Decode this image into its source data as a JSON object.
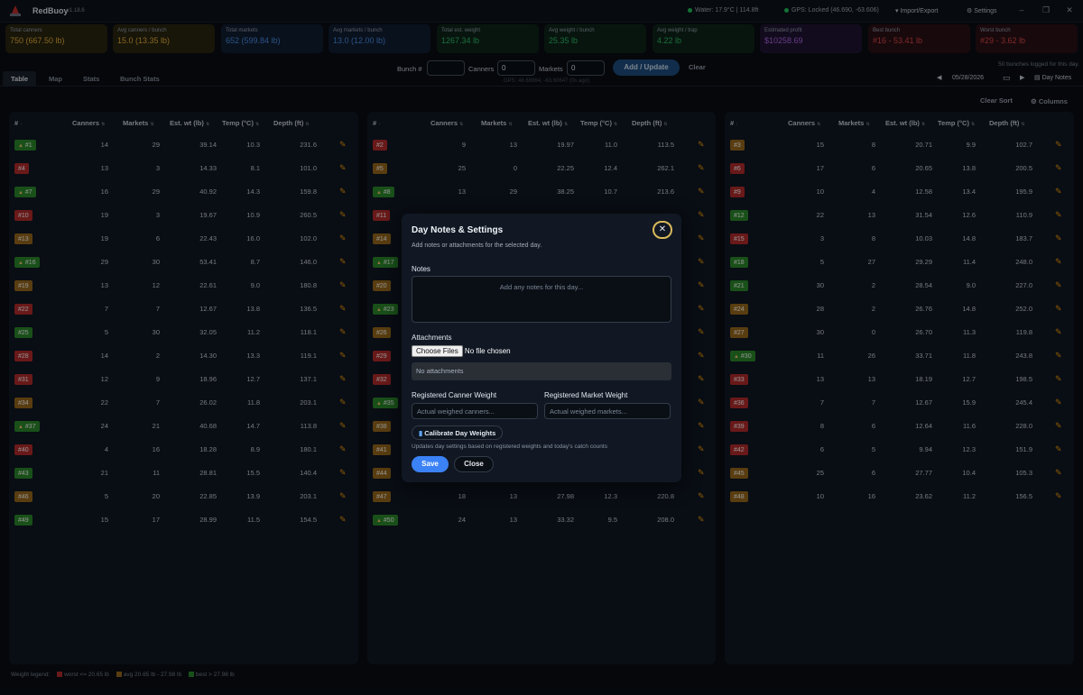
{
  "app": {
    "name": "RedBuoy",
    "version": "v1.18.6"
  },
  "topbar": {
    "water": "Water: 17.9°C | 114.8ft",
    "gps": "GPS: Locked (46.690, -63.606)",
    "import_export": "Import/Export",
    "settings": "Settings"
  },
  "stats": [
    {
      "label": "Total canners",
      "value": "750 (667.50 lb)",
      "color": "#e8b33a",
      "bg": "#2a2510"
    },
    {
      "label": "Avg canners / bunch",
      "value": "15.0 (13.35 lb)",
      "color": "#e8b33a",
      "bg": "#2a2510"
    },
    {
      "label": "Total markets",
      "value": "652 (599.84 lb)",
      "color": "#4b8fe6",
      "bg": "#111e33"
    },
    {
      "label": "Avg markets / bunch",
      "value": "13.0 (12.00 lb)",
      "color": "#4b8fe6",
      "bg": "#111e33"
    },
    {
      "label": "Total est. weight",
      "value": "1267.34 lb",
      "color": "#2fbf6a",
      "bg": "#0e2519"
    },
    {
      "label": "Avg weight / bunch",
      "value": "25.35 lb",
      "color": "#2fbf6a",
      "bg": "#0e2519"
    },
    {
      "label": "Avg weight / trap",
      "value": "4.22 lb",
      "color": "#2fbf6a",
      "bg": "#0e2519"
    },
    {
      "label": "Estimated profit",
      "value": "$10258.69",
      "color": "#b069e8",
      "bg": "#1f1433"
    },
    {
      "label": "Best bunch",
      "value": "#16 - 53.41 lb",
      "color": "#e04848",
      "bg": "#2a1015"
    },
    {
      "label": "Worst bunch",
      "value": "#29 - 3.62 lb",
      "color": "#e04848",
      "bg": "#2a1015"
    }
  ],
  "tabs": [
    "Table",
    "Map",
    "Stats",
    "Bunch Stats"
  ],
  "entry": {
    "bunch_label": "Bunch #",
    "bunch_value": "",
    "canners_label": "Canners",
    "canners_value": "0",
    "markets_label": "Markets",
    "markets_value": "0",
    "add_label": "Add / Update",
    "clear_label": "Clear",
    "gps_note": "GPS: 46.68964, -63.60647 (0s ago)"
  },
  "bunch_count": "50 bunches logged for this day.",
  "date": "05/28/2026",
  "day_notes_label": "Day Notes",
  "clear_sort": "Clear Sort",
  "columns_label": "Columns",
  "columns": [
    "#",
    "Canners",
    "Markets",
    "Est. wt (lb)",
    "Temp (°C)",
    "Depth (ft)"
  ],
  "panels": [
    [
      [
        "#1",
        "green",
        true,
        "14",
        "29",
        "39.14",
        "10.3",
        "231.6"
      ],
      [
        "#4",
        "red",
        false,
        "13",
        "3",
        "14.33",
        "8.1",
        "101.0"
      ],
      [
        "#7",
        "green",
        true,
        "16",
        "29",
        "40.92",
        "14.3",
        "159.8"
      ],
      [
        "#10",
        "red",
        false,
        "19",
        "3",
        "19.67",
        "10.9",
        "260.5"
      ],
      [
        "#13",
        "amber",
        false,
        "19",
        "6",
        "22.43",
        "16.0",
        "102.0"
      ],
      [
        "#16",
        "green",
        true,
        "29",
        "30",
        "53.41",
        "8.7",
        "146.0"
      ],
      [
        "#19",
        "amber",
        false,
        "13",
        "12",
        "22.61",
        "9.0",
        "180.8"
      ],
      [
        "#22",
        "red",
        false,
        "7",
        "7",
        "12.67",
        "13.8",
        "136.5"
      ],
      [
        "#25",
        "green",
        false,
        "5",
        "30",
        "32.05",
        "11.2",
        "118.1"
      ],
      [
        "#28",
        "red",
        false,
        "14",
        "2",
        "14.30",
        "13.3",
        "119.1"
      ],
      [
        "#31",
        "red",
        false,
        "12",
        "9",
        "18.96",
        "12.7",
        "137.1"
      ],
      [
        "#34",
        "amber",
        false,
        "22",
        "7",
        "26.02",
        "11.8",
        "203.1"
      ],
      [
        "#37",
        "green",
        true,
        "24",
        "21",
        "40.68",
        "14.7",
        "113.8"
      ],
      [
        "#40",
        "red",
        false,
        "4",
        "16",
        "18.28",
        "8.9",
        "180.1"
      ],
      [
        "#43",
        "green",
        false,
        "21",
        "11",
        "28.81",
        "15.5",
        "140.4"
      ],
      [
        "#46",
        "amber",
        false,
        "5",
        "20",
        "22.85",
        "13.9",
        "203.1"
      ],
      [
        "#49",
        "green",
        false,
        "15",
        "17",
        "28.99",
        "11.5",
        "154.5"
      ]
    ],
    [
      [
        "#2",
        "red",
        false,
        "9",
        "13",
        "19.97",
        "11.0",
        "113.5"
      ],
      [
        "#5",
        "amber",
        false,
        "25",
        "0",
        "22.25",
        "12.4",
        "262.1"
      ],
      [
        "#8",
        "green",
        true,
        "13",
        "29",
        "38.25",
        "10.7",
        "213.6"
      ],
      [
        "#11",
        "red",
        false,
        "",
        "",
        "",
        "",
        ""
      ],
      [
        "#14",
        "amber",
        false,
        "",
        "",
        "",
        "",
        ""
      ],
      [
        "#17",
        "green",
        true,
        "",
        "",
        "",
        "",
        ""
      ],
      [
        "#20",
        "amber",
        false,
        "",
        "",
        "",
        "",
        ""
      ],
      [
        "#23",
        "green",
        true,
        "",
        "",
        "",
        "",
        ""
      ],
      [
        "#26",
        "amber",
        false,
        "",
        "",
        "",
        "",
        ""
      ],
      [
        "#29",
        "red",
        false,
        "",
        "",
        "",
        "",
        ""
      ],
      [
        "#32",
        "red",
        false,
        "",
        "",
        "",
        "",
        ""
      ],
      [
        "#35",
        "green",
        true,
        "",
        "",
        "",
        "",
        ""
      ],
      [
        "#38",
        "amber",
        false,
        "",
        "",
        "",
        "",
        ""
      ],
      [
        "#41",
        "amber",
        false,
        "",
        "",
        "",
        "",
        ""
      ],
      [
        "#44",
        "amber",
        false,
        "",
        "",
        "",
        "",
        ""
      ],
      [
        "#47",
        "amber",
        false,
        "18",
        "13",
        "27.98",
        "12.3",
        "220.8"
      ],
      [
        "#50",
        "green",
        true,
        "24",
        "13",
        "33.32",
        "9.5",
        "208.0"
      ]
    ],
    [
      [
        "#3",
        "amber",
        false,
        "15",
        "8",
        "20.71",
        "9.9",
        "102.7"
      ],
      [
        "#6",
        "red",
        false,
        "17",
        "6",
        "20.65",
        "13.8",
        "200.5"
      ],
      [
        "#9",
        "red",
        false,
        "10",
        "4",
        "12.58",
        "13.4",
        "195.9"
      ],
      [
        "#12",
        "green",
        false,
        "22",
        "13",
        "31.54",
        "12.6",
        "110.9"
      ],
      [
        "#15",
        "red",
        false,
        "3",
        "8",
        "10.03",
        "14.8",
        "183.7"
      ],
      [
        "#18",
        "green",
        false,
        "5",
        "27",
        "29.29",
        "11.4",
        "248.0"
      ],
      [
        "#21",
        "green",
        false,
        "30",
        "2",
        "28.54",
        "9.0",
        "227.0"
      ],
      [
        "#24",
        "amber",
        false,
        "28",
        "2",
        "26.76",
        "14.8",
        "252.0"
      ],
      [
        "#27",
        "amber",
        false,
        "30",
        "0",
        "26.70",
        "11.3",
        "119.8"
      ],
      [
        "#30",
        "green",
        true,
        "11",
        "26",
        "33.71",
        "11.8",
        "243.8"
      ],
      [
        "#33",
        "red",
        false,
        "13",
        "13",
        "18.19",
        "12.7",
        "198.5"
      ],
      [
        "#36",
        "red",
        false,
        "7",
        "7",
        "12.67",
        "15.9",
        "245.4"
      ],
      [
        "#39",
        "red",
        false,
        "8",
        "6",
        "12.64",
        "11.6",
        "228.0"
      ],
      [
        "#42",
        "red",
        false,
        "6",
        "5",
        "9.94",
        "12.3",
        "151.9"
      ],
      [
        "#45",
        "amber",
        false,
        "25",
        "6",
        "27.77",
        "10.4",
        "105.3"
      ],
      [
        "#48",
        "amber",
        false,
        "10",
        "16",
        "23.62",
        "11.2",
        "156.5"
      ]
    ]
  ],
  "modal": {
    "title": "Day Notes & Settings",
    "subtitle": "Add notes or attachments for the selected day.",
    "notes_label": "Notes",
    "notes_placeholder": "Add any notes for this day...",
    "attachments_label": "Attachments",
    "choose_files": "Choose Files",
    "no_file": "No file chosen",
    "no_attachments": "No attachments",
    "canner_weight_label": "Registered Canner Weight",
    "market_weight_label": "Registered Market Weight",
    "canner_placeholder": "Actual weighed canners...",
    "market_placeholder": "Actual weighed markets...",
    "calibrate": "Calibrate Day Weights",
    "calibrate_hint": "Updates day settings based on registered weights and today's catch counts",
    "save": "Save",
    "close": "Close"
  },
  "legend": {
    "label": "Weight legend:",
    "worst": "worst <= 20.65 lb",
    "avg": "avg 20.65 lb - 27.98 lb",
    "best": "best > 27.98 lb"
  }
}
